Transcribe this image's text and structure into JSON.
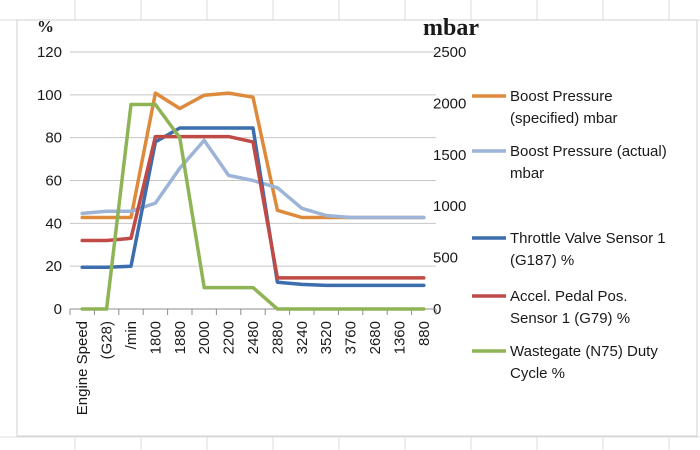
{
  "chart_data": {
    "type": "line",
    "categories": [
      "Engine Speed",
      "(G28)",
      "/min",
      "1800",
      "1880",
      "2000",
      "2200",
      "2480",
      "2880",
      "3240",
      "3520",
      "3760",
      "2680",
      "1360",
      "880"
    ],
    "left_axis": {
      "unit": "%",
      "ylim": [
        0,
        120
      ],
      "ticks": [
        "0",
        "20",
        "40",
        "60",
        "80",
        "100",
        "120"
      ]
    },
    "right_axis": {
      "unit": "mbar",
      "ylim": [
        0,
        2500
      ],
      "ticks": [
        "0",
        "500",
        "1000",
        "1500",
        "2000",
        "2500"
      ]
    },
    "grid": "horizontal",
    "legend_position": "right",
    "series": [
      {
        "name": [
          "Boost Pressure",
          "(specified)  mbar"
        ],
        "axis": "right",
        "color": "#dd8a3c",
        "values": [
          890,
          890,
          890,
          2100,
          1950,
          2080,
          2100,
          2060,
          960,
          890,
          890,
          890,
          890,
          890,
          890
        ]
      },
      {
        "name": [
          "Boost Pressure (actual)",
          "mbar"
        ],
        "axis": "right",
        "color": "#9db4d6",
        "values": [
          930,
          950,
          950,
          1030,
          1370,
          1640,
          1300,
          1250,
          1180,
          980,
          910,
          890,
          890,
          890,
          890
        ]
      },
      {
        "name": [
          "Throttle Valve Sensor 1",
          "(G187)  %"
        ],
        "axis": "left",
        "color": "#3c6eae",
        "values": [
          19.5,
          19.5,
          20,
          78,
          84.5,
          84.5,
          84.5,
          84.5,
          12.5,
          11.5,
          11,
          11,
          11,
          11,
          11
        ]
      },
      {
        "name": [
          "Accel. Pedal Pos.",
          "Sensor 1 (G79)  %"
        ],
        "axis": "left",
        "color": "#bf4a46",
        "values": [
          32,
          32,
          33,
          80.5,
          80.5,
          80.5,
          80.5,
          78,
          14.5,
          14.5,
          14.5,
          14.5,
          14.5,
          14.5,
          14.5
        ]
      },
      {
        "name": [
          "Wastegate (N75) Duty",
          "Cycle  %"
        ],
        "axis": "left",
        "color": "#8eb456",
        "values": [
          0,
          0,
          95.5,
          95.5,
          80,
          10,
          10,
          10,
          0,
          0,
          0,
          0,
          0,
          0,
          0
        ]
      }
    ]
  }
}
